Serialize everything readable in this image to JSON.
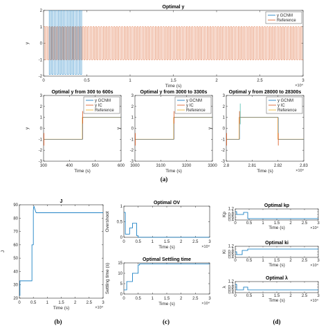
{
  "colors": {
    "gcnm": "#0072BD",
    "ic": "#D95319",
    "reference": "#EDB120",
    "axis": "#262626"
  },
  "captions": [
    "(a)",
    "(b)",
    "(c)",
    "(d)"
  ],
  "chart_data": [
    {
      "id": "optimal-y",
      "type": "line",
      "title": "Optimal y",
      "xlabel": "Time (s)",
      "ylabel": "y",
      "x_multiplier": "×10⁴",
      "xlim": [
        0,
        3
      ],
      "ylim": [
        -2,
        2
      ],
      "xticks": [
        0,
        0.5,
        1,
        1.5,
        2,
        2.5,
        3
      ],
      "yticks": [
        -2,
        -1,
        0,
        1,
        2
      ],
      "xtick_labels": [
        "0",
        "0.5",
        "1",
        "1.5",
        "2",
        "2.5",
        "3"
      ],
      "ytick_labels": [
        "-2",
        "-1",
        "0",
        "1",
        "2"
      ],
      "legend": [
        "y GCNM",
        "Reference"
      ],
      "legend_position": "top-right",
      "series": [
        {
          "name": "Reference",
          "kind": "square_wave",
          "period": 0.03,
          "low": -1,
          "high": 1,
          "x_range": [
            0,
            3
          ]
        },
        {
          "name": "y GCNM",
          "kind": "oscillation",
          "period": 0.03,
          "low": -1.9,
          "high": 2,
          "x_range": [
            0.05,
            0.45
          ]
        }
      ]
    },
    {
      "id": "zoom-300-600",
      "type": "line",
      "title": "Optimal y from 300 to 600s",
      "xlabel": "Time (s)",
      "ylabel": "y",
      "xlim": [
        300,
        600
      ],
      "ylim": [
        -3,
        3
      ],
      "xticks": [
        300,
        400,
        500,
        600
      ],
      "yticks": [
        -3,
        -2,
        -1,
        0,
        1,
        2,
        3
      ],
      "xtick_labels": [
        "300",
        "400",
        "500",
        "600"
      ],
      "ytick_labels": [
        "-3",
        "-2",
        "-1",
        "0",
        "1",
        "2",
        "3"
      ],
      "legend": [
        "y GCNM",
        "y IC",
        "Reference"
      ],
      "legend_position": "top-right",
      "step_at": [
        450
      ],
      "levels": [
        -1,
        1
      ]
    },
    {
      "id": "zoom-3000-3300",
      "type": "line",
      "title": "Optimal y from 3000 to 3300s",
      "xlabel": "Time (s)",
      "ylabel": "y",
      "xlim": [
        3000,
        3300
      ],
      "ylim": [
        -3,
        3
      ],
      "xticks": [
        3000,
        3100,
        3200,
        3300
      ],
      "yticks": [
        -3,
        -2,
        -1,
        0,
        1,
        2,
        3
      ],
      "xtick_labels": [
        "3000",
        "3100",
        "3200",
        "3300"
      ],
      "ytick_labels": [
        "-3",
        "-2",
        "-1",
        "0",
        "1",
        "2",
        "3"
      ],
      "legend": [
        "y GCNM",
        "y IC",
        "Reference"
      ],
      "legend_position": "top-right",
      "step_at": [
        3150
      ],
      "levels": [
        -1,
        1
      ]
    },
    {
      "id": "zoom-28000-28300",
      "type": "line",
      "title": "Optimal y from 28000 to 28300s",
      "xlabel": "Time (s)",
      "ylabel": "y",
      "x_multiplier": "×10⁴",
      "xlim": [
        2.8,
        2.83
      ],
      "ylim": [
        -3,
        3
      ],
      "xticks": [
        2.8,
        2.81,
        2.82,
        2.83
      ],
      "yticks": [
        -3,
        -2,
        -1,
        0,
        1,
        2,
        3
      ],
      "xtick_labels": [
        "2.8",
        "2.81",
        "2.82",
        "2.83"
      ],
      "ytick_labels": [
        "-3",
        "-2",
        "-1",
        "0",
        "1",
        "2",
        "3"
      ],
      "legend": [
        "y GCNM",
        "y IC",
        "Reference"
      ],
      "legend_position": "top-right",
      "step_at": [
        2.805,
        2.82
      ],
      "levels": [
        -1,
        1
      ]
    },
    {
      "id": "J",
      "type": "line",
      "title": "J",
      "xlabel": "Time (s)",
      "ylabel": "J",
      "x_multiplier": "×10⁴",
      "xlim": [
        0,
        3
      ],
      "ylim": [
        20,
        90
      ],
      "xticks": [
        0,
        0.5,
        1,
        1.5,
        2,
        2.5,
        3
      ],
      "yticks": [
        20,
        30,
        40,
        50,
        60,
        70,
        80,
        90
      ],
      "xtick_labels": [
        "0",
        "0.5",
        "1",
        "1.5",
        "2",
        "2.5",
        "3"
      ],
      "ytick_labels": [
        "20",
        "30",
        "40",
        "50",
        "60",
        "70",
        "80",
        "90"
      ],
      "series": [
        {
          "name": "J",
          "points": [
            [
              0,
              22
            ],
            [
              0.02,
              22
            ],
            [
              0.02,
              33
            ],
            [
              0.45,
              33
            ],
            [
              0.45,
              60
            ],
            [
              0.5,
              60
            ],
            [
              0.5,
              86
            ],
            [
              0.52,
              89
            ],
            [
              0.55,
              87
            ],
            [
              0.6,
              84
            ],
            [
              3,
              84
            ]
          ]
        }
      ]
    },
    {
      "id": "optimal-ov",
      "type": "line",
      "title": "Optimal OV",
      "xlabel": "Time (s)",
      "ylabel": "Overshoot",
      "x_multiplier": "×10⁴",
      "xlim": [
        0,
        3
      ],
      "ylim": [
        0,
        1
      ],
      "xticks": [
        0,
        0.5,
        1,
        1.5,
        2,
        2.5,
        3
      ],
      "yticks": [
        0,
        0.5,
        1
      ],
      "xtick_labels": [
        "0",
        "0.5",
        "1",
        "1.5",
        "2",
        "2.5",
        "3"
      ],
      "ytick_labels": [
        "0",
        "0.5",
        "1"
      ],
      "series": [
        {
          "name": "Overshoot",
          "points": [
            [
              0,
              0.8
            ],
            [
              0.05,
              0.8
            ],
            [
              0.05,
              0.1
            ],
            [
              0.2,
              0.1
            ],
            [
              0.2,
              0.3
            ],
            [
              0.3,
              0.3
            ],
            [
              0.3,
              0.45
            ],
            [
              0.45,
              0.45
            ],
            [
              0.45,
              0.05
            ],
            [
              0.5,
              0.05
            ],
            [
              0.5,
              0
            ],
            [
              3,
              0
            ]
          ]
        }
      ]
    },
    {
      "id": "optimal-settling",
      "type": "line",
      "title": "Optimal Settling time",
      "xlabel": "Time (s)",
      "ylabel": "Settling time (s)",
      "x_multiplier": "×10⁴",
      "xlim": [
        0,
        3
      ],
      "ylim": [
        0,
        15
      ],
      "xticks": [
        0,
        0.5,
        1,
        1.5,
        2,
        2.5,
        3
      ],
      "yticks": [
        0,
        5,
        10,
        15
      ],
      "xtick_labels": [
        "0",
        "0.5",
        "1",
        "1.5",
        "2",
        "2.5",
        "3"
      ],
      "ytick_labels": [
        "0",
        "5",
        "10",
        "15"
      ],
      "series": [
        {
          "name": "Settling time",
          "points": [
            [
              0,
              2
            ],
            [
              0.1,
              2
            ],
            [
              0.1,
              6
            ],
            [
              0.3,
              6
            ],
            [
              0.3,
              10
            ],
            [
              0.5,
              10
            ],
            [
              0.5,
              14
            ],
            [
              0.55,
              14
            ],
            [
              0.55,
              14.5
            ],
            [
              3,
              14.5
            ]
          ]
        }
      ]
    },
    {
      "id": "optimal-kp",
      "type": "line",
      "title": "Optimal kp",
      "xlabel": "Time (s)",
      "ylabel": "Kp",
      "x_multiplier": "×10⁴",
      "xlim": [
        0,
        3
      ],
      "ylim": [
        0.4,
        1.2
      ],
      "xticks": [
        0,
        0.5,
        1,
        1.5,
        2,
        2.5,
        3
      ],
      "yticks": [
        0.4,
        0.6,
        0.8,
        1,
        1.2
      ],
      "xtick_labels": [
        "0",
        "0.5",
        "1",
        "1.5",
        "2",
        "2.5",
        "3"
      ],
      "ytick_labels": [
        "0.4",
        "0.6",
        "0.8",
        "1",
        "1.2"
      ],
      "series": [
        {
          "name": "Kp",
          "points": [
            [
              0,
              1.0
            ],
            [
              0.05,
              1.0
            ],
            [
              0.05,
              0.8
            ],
            [
              0.3,
              0.8
            ],
            [
              0.3,
              0.95
            ],
            [
              0.45,
              0.95
            ],
            [
              0.45,
              0.5
            ],
            [
              3,
              0.5
            ]
          ]
        }
      ]
    },
    {
      "id": "optimal-ki",
      "type": "line",
      "title": "Optimal ki",
      "xlabel": "Time (s)",
      "ylabel": "Ki",
      "x_multiplier": "×10⁴",
      "xlim": [
        0,
        3
      ],
      "ylim": [
        0.4,
        1.2
      ],
      "xticks": [
        0,
        0.5,
        1,
        1.5,
        2,
        2.5,
        3
      ],
      "yticks": [
        0.4,
        0.6,
        0.8,
        1,
        1.2
      ],
      "xtick_labels": [
        "0",
        "0.5",
        "1",
        "1.5",
        "2",
        "2.5",
        "3"
      ],
      "ytick_labels": [
        "0.4",
        "0.6",
        "0.8",
        "1",
        "1.2"
      ],
      "series": [
        {
          "name": "Ki",
          "points": [
            [
              0,
              0.8
            ],
            [
              0.05,
              0.8
            ],
            [
              0.05,
              0.6
            ],
            [
              0.25,
              0.6
            ],
            [
              0.25,
              0.9
            ],
            [
              0.45,
              0.9
            ],
            [
              0.45,
              1.0
            ],
            [
              3,
              1.0
            ]
          ]
        }
      ]
    },
    {
      "id": "optimal-lambda",
      "type": "line",
      "title": "Optimal λ",
      "xlabel": "Time (s)",
      "ylabel": "λ",
      "x_multiplier": "×10⁴",
      "xlim": [
        0,
        3
      ],
      "ylim": [
        0.4,
        1.2
      ],
      "xticks": [
        0,
        0.5,
        1,
        1.5,
        2,
        2.5,
        3
      ],
      "yticks": [
        0.4,
        0.6,
        0.8,
        1,
        1.2
      ],
      "xtick_labels": [
        "0",
        "0.5",
        "1",
        "1.5",
        "2",
        "2.5",
        "3"
      ],
      "ytick_labels": [
        "0.4",
        "0.6",
        "0.8",
        "1",
        "1.2"
      ],
      "series": [
        {
          "name": "λ",
          "points": [
            [
              0,
              1.0
            ],
            [
              0.05,
              1.0
            ],
            [
              0.05,
              0.6
            ],
            [
              0.3,
              0.6
            ],
            [
              0.3,
              0.8
            ],
            [
              0.45,
              0.8
            ],
            [
              0.45,
              0.6
            ],
            [
              3,
              0.6
            ]
          ]
        }
      ]
    }
  ]
}
